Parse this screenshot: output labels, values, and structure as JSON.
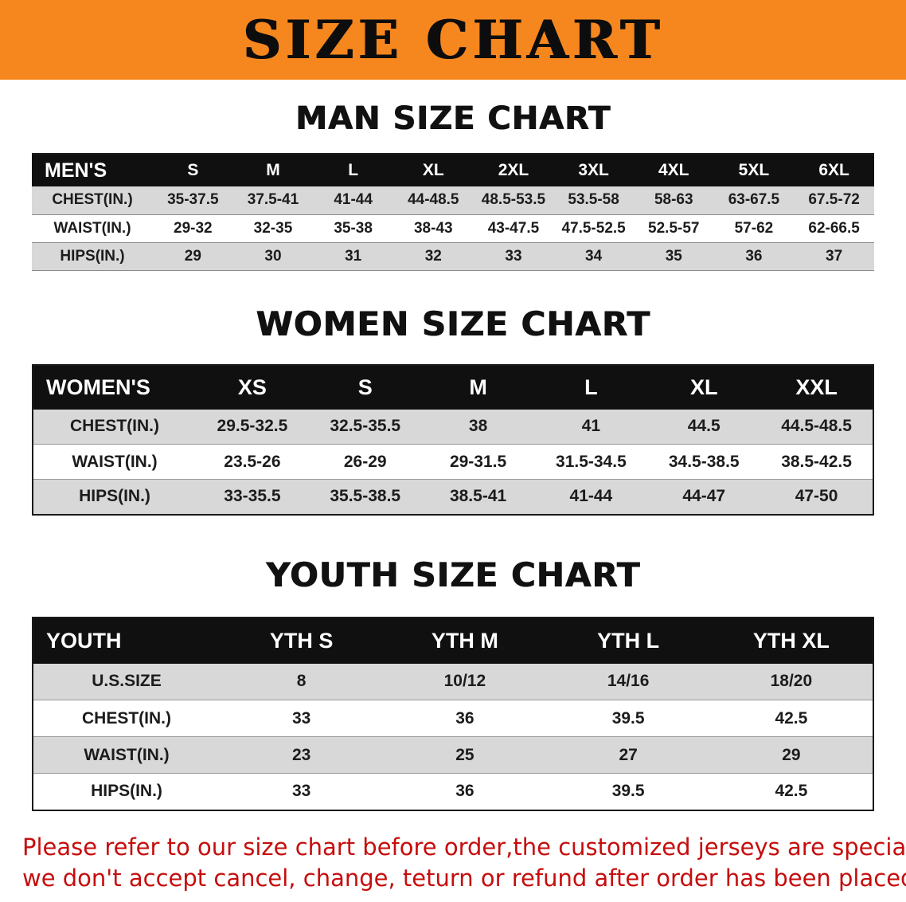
{
  "banner": {
    "title": "SIZE CHART",
    "bg_color": "#f6871f",
    "text_color": "#0d0d0d"
  },
  "sections": [
    {
      "heading": "MAN SIZE CHART",
      "table": {
        "header": [
          "MEN'S",
          "S",
          "M",
          "L",
          "XL",
          "2XL",
          "3XL",
          "4XL",
          "5XL",
          "6XL"
        ],
        "rows": [
          [
            "CHEST(IN.)",
            "35-37.5",
            "37.5-41",
            "41-44",
            "44-48.5",
            "48.5-53.5",
            "53.5-58",
            "58-63",
            "63-67.5",
            "67.5-72"
          ],
          [
            "WAIST(IN.)",
            "29-32",
            "32-35",
            "35-38",
            "38-43",
            "43-47.5",
            "47.5-52.5",
            "52.5-57",
            "57-62",
            "62-66.5"
          ],
          [
            "HIPS(IN.)",
            "29",
            "30",
            "31",
            "32",
            "33",
            "34",
            "35",
            "36",
            "37"
          ]
        ]
      }
    },
    {
      "heading": "WOMEN SIZE CHART",
      "table": {
        "header": [
          "WOMEN'S",
          "XS",
          "S",
          "M",
          "L",
          "XL",
          "XXL"
        ],
        "rows": [
          [
            "CHEST(IN.)",
            "29.5-32.5",
            "32.5-35.5",
            "38",
            "41",
            "44.5",
            "44.5-48.5"
          ],
          [
            "WAIST(IN.)",
            "23.5-26",
            "26-29",
            "29-31.5",
            "31.5-34.5",
            "34.5-38.5",
            "38.5-42.5"
          ],
          [
            "HIPS(IN.)",
            "33-35.5",
            "35.5-38.5",
            "38.5-41",
            "41-44",
            "44-47",
            "47-50"
          ]
        ]
      }
    },
    {
      "heading": "YOUTH SIZE CHART",
      "table": {
        "header": [
          "YOUTH",
          "YTH S",
          "YTH M",
          "YTH L",
          "YTH XL"
        ],
        "rows": [
          [
            "U.S.SIZE",
            "8",
            "10/12",
            "14/16",
            "18/20"
          ],
          [
            "CHEST(IN.)",
            "33",
            "36",
            "39.5",
            "42.5"
          ],
          [
            "WAIST(IN.)",
            "23",
            "25",
            "27",
            "29"
          ],
          [
            "HIPS(IN.)",
            "33",
            "36",
            "39.5",
            "42.5"
          ]
        ]
      }
    }
  ],
  "style_colors": {
    "table_header_bg": "#101010",
    "row_stripe_gray": "#d8d8d8",
    "disclaimer_red": "#c60d0d"
  },
  "disclaimer": {
    "lines": [
      "Please refer to our size chart before order,the customized jerseys are special products,",
      "we don't accept cancel, change, teturn or refund after order has been placed!"
    ]
  }
}
